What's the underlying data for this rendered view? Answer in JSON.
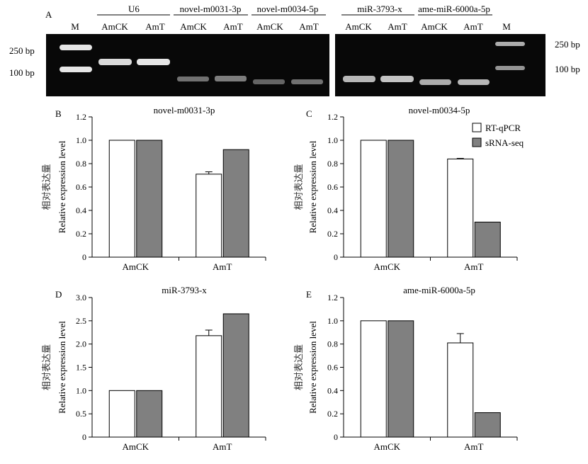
{
  "panel_a": {
    "label": "A",
    "bp_labels": [
      "250 bp",
      "100 bp"
    ],
    "marker_label": "M",
    "gel_left": {
      "groups": [
        {
          "name": "U6",
          "lanes": [
            "AmCK",
            "AmT"
          ]
        },
        {
          "name": "novel-m0031-3p",
          "lanes": [
            "AmCK",
            "AmT"
          ]
        },
        {
          "name": "novel-m0034-5p",
          "lanes": [
            "AmCK",
            "AmT"
          ]
        }
      ]
    },
    "gel_right": {
      "groups": [
        {
          "name": "miR-3793-x",
          "lanes": [
            "AmCK",
            "AmT"
          ]
        },
        {
          "name": "ame-miR-6000a-5p",
          "lanes": [
            "AmCK",
            "AmT"
          ]
        }
      ]
    }
  },
  "legend": {
    "items": [
      "RT-qPCR",
      "sRNA-seq"
    ]
  },
  "colors": {
    "rt_qpcr": "#ffffff",
    "srna_seq": "#808080",
    "gel_background": "#080808",
    "band": "#f2f2f2"
  },
  "ylabel_zh": "相对表达量",
  "ylabel_en": "Relative expression level",
  "chart_data": [
    {
      "panel": "B",
      "type": "bar",
      "title": "novel-m0031-3p",
      "categories": [
        "AmCK",
        "AmT"
      ],
      "series": [
        {
          "name": "RT-qPCR",
          "values": [
            1.0,
            0.71
          ],
          "errors": [
            0,
            0.02
          ]
        },
        {
          "name": "sRNA-seq",
          "values": [
            1.0,
            0.92
          ],
          "errors": [
            0,
            0
          ]
        }
      ],
      "ylim": [
        0,
        1.2
      ],
      "yticks": [
        "0",
        "0.2",
        "0.4",
        "0.6",
        "0.8",
        "1.0",
        "1.2"
      ],
      "ytick_values": [
        0,
        0.2,
        0.4,
        0.6,
        0.8,
        1.0,
        1.2
      ],
      "legend": false
    },
    {
      "panel": "C",
      "type": "bar",
      "title": "novel-m0034-5p",
      "categories": [
        "AmCK",
        "AmT"
      ],
      "series": [
        {
          "name": "RT-qPCR",
          "values": [
            1.0,
            0.84
          ],
          "errors": [
            0,
            0.005
          ]
        },
        {
          "name": "sRNA-seq",
          "values": [
            1.0,
            0.3
          ],
          "errors": [
            0,
            0
          ]
        }
      ],
      "ylim": [
        0,
        1.2
      ],
      "yticks": [
        "0",
        "0.2",
        "0.4",
        "0.6",
        "0.8",
        "1.0",
        "1.2"
      ],
      "ytick_values": [
        0,
        0.2,
        0.4,
        0.6,
        0.8,
        1.0,
        1.2
      ],
      "legend": true
    },
    {
      "panel": "D",
      "type": "bar",
      "title": "miR-3793-x",
      "categories": [
        "AmCK",
        "AmT"
      ],
      "series": [
        {
          "name": "RT-qPCR",
          "values": [
            1.0,
            2.18
          ],
          "errors": [
            0,
            0.12
          ]
        },
        {
          "name": "sRNA-seq",
          "values": [
            1.0,
            2.65
          ],
          "errors": [
            0,
            0
          ]
        }
      ],
      "ylim": [
        0,
        3.0
      ],
      "yticks": [
        "0",
        "0.5",
        "1.0",
        "1.5",
        "2.0",
        "2.5",
        "3.0"
      ],
      "ytick_values": [
        0,
        0.5,
        1.0,
        1.5,
        2.0,
        2.5,
        3.0
      ],
      "legend": false
    },
    {
      "panel": "E",
      "type": "bar",
      "title": "ame-miR-6000a-5p",
      "categories": [
        "AmCK",
        "AmT"
      ],
      "series": [
        {
          "name": "RT-qPCR",
          "values": [
            1.0,
            0.81
          ],
          "errors": [
            0,
            0.08
          ]
        },
        {
          "name": "sRNA-seq",
          "values": [
            1.0,
            0.21
          ],
          "errors": [
            0,
            0
          ]
        }
      ],
      "ylim": [
        0,
        1.2
      ],
      "yticks": [
        "0",
        "0.2",
        "0.4",
        "0.6",
        "0.8",
        "1.0",
        "1.2"
      ],
      "ytick_values": [
        0,
        0.2,
        0.4,
        0.6,
        0.8,
        1.0,
        1.2
      ],
      "legend": false
    }
  ]
}
